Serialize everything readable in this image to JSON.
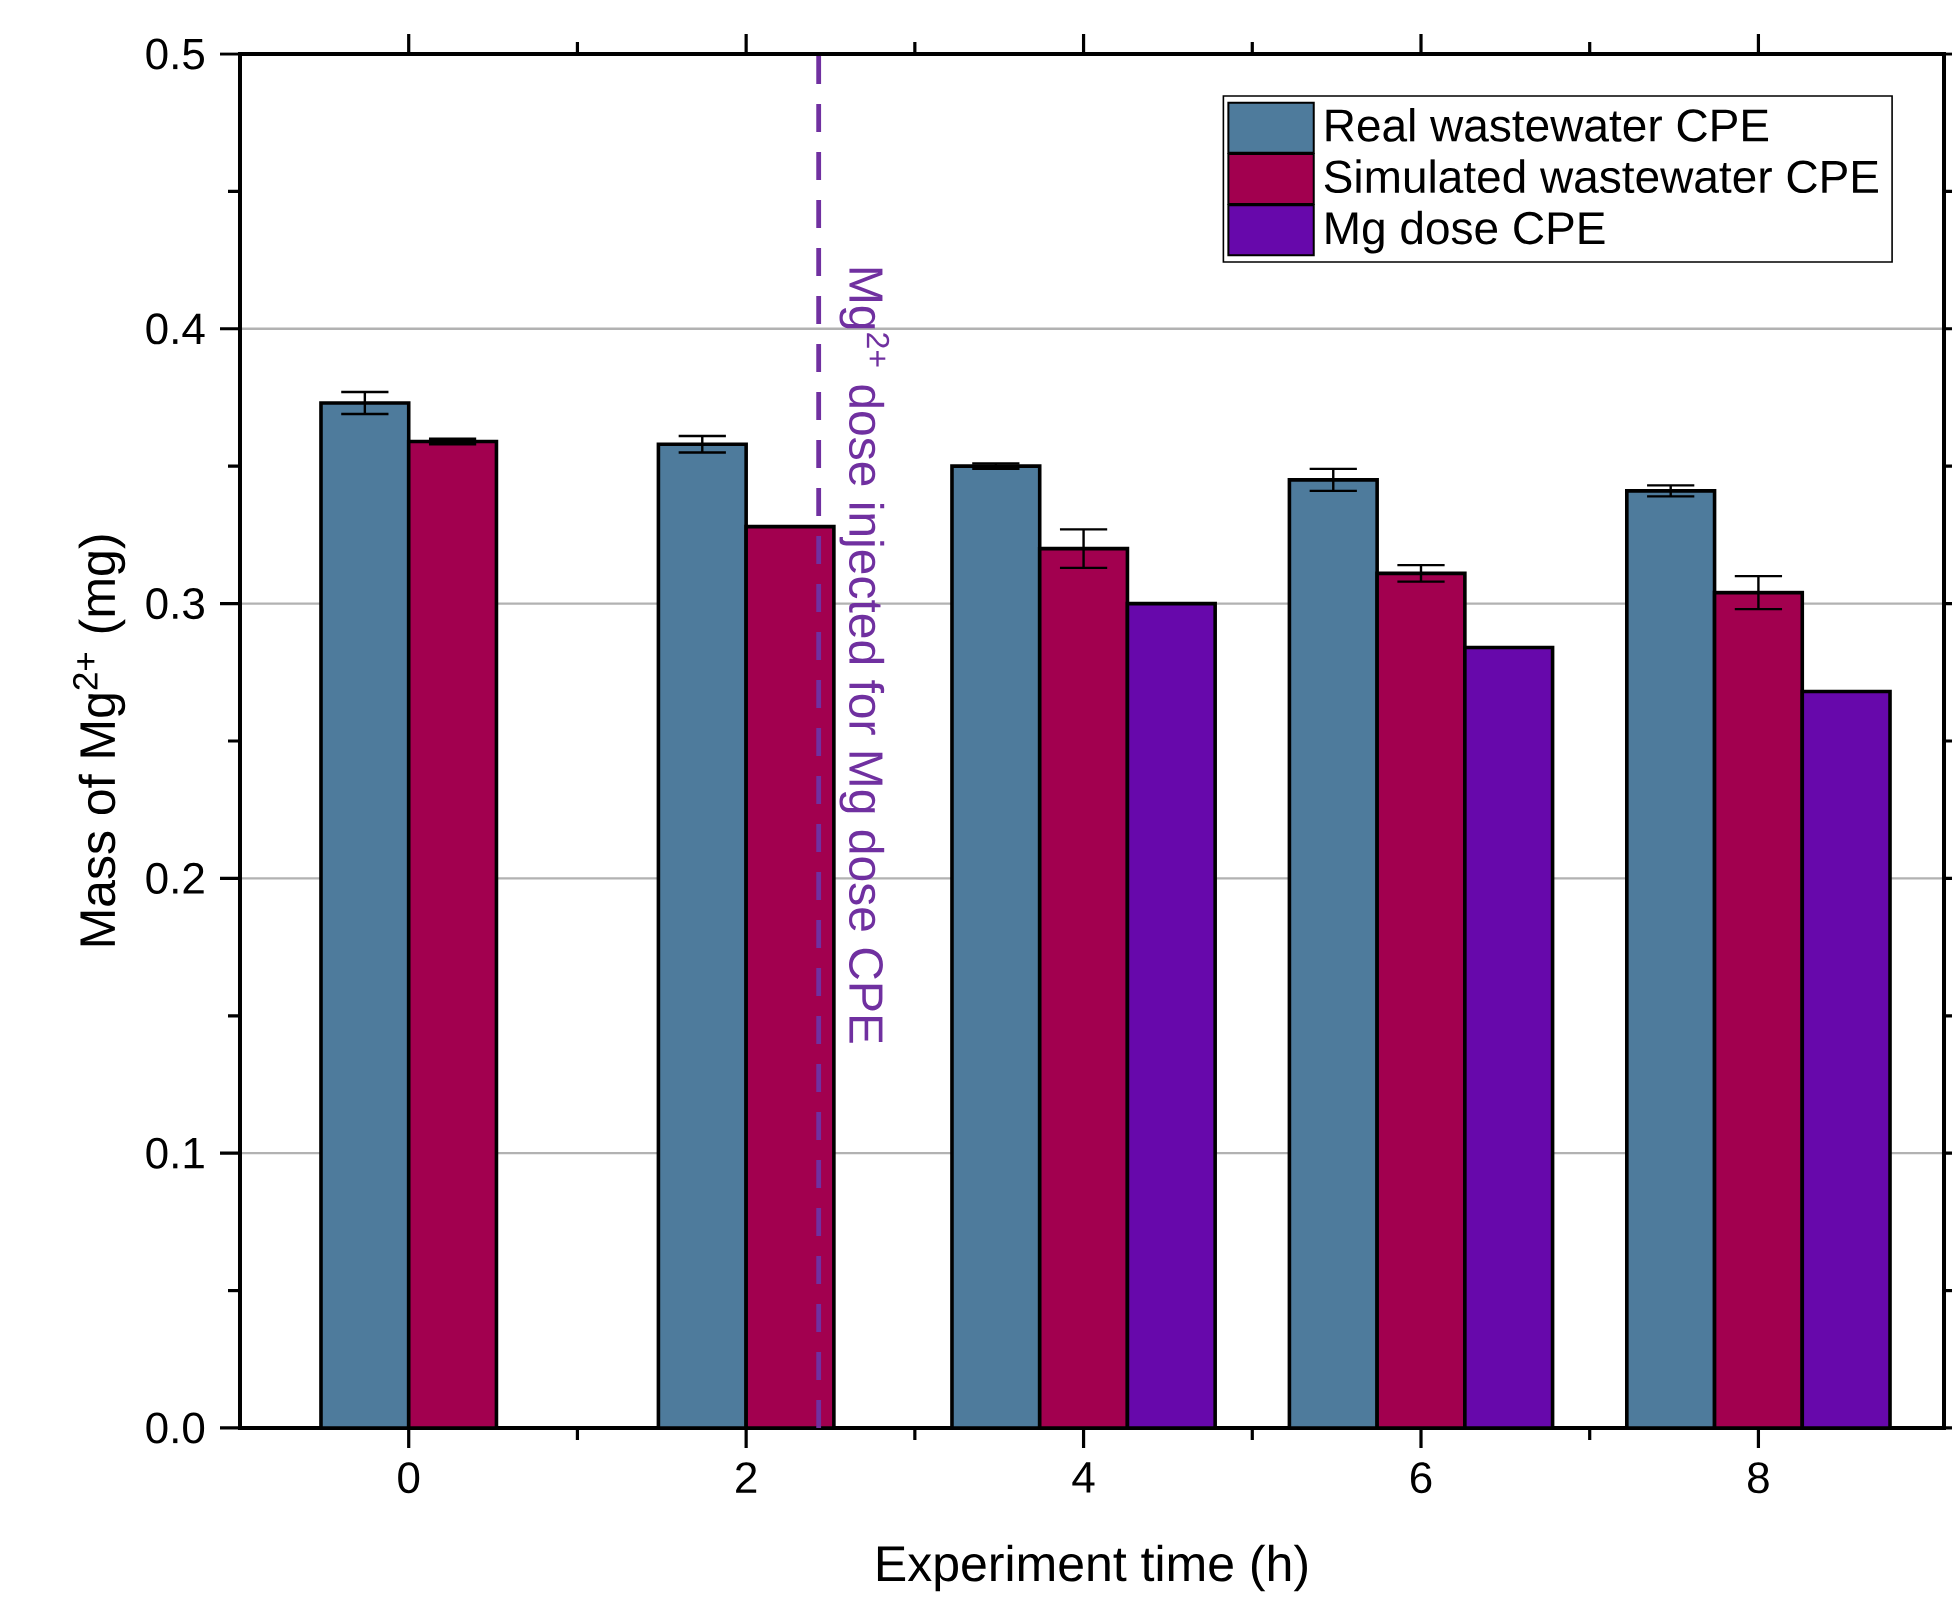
{
  "chart_data": {
    "type": "bar",
    "xlabel": "Experiment time (h)",
    "ylabel": "Mass of Mg$^{2+}$ (mg)",
    "x": [
      0,
      2,
      4,
      6,
      8
    ],
    "xlim": [
      -1,
      9.1
    ],
    "xticks": [
      0,
      2,
      4,
      6,
      8
    ],
    "ylim": [
      0,
      0.5
    ],
    "yticks": [
      {
        "value": 0,
        "label": "0.0"
      },
      {
        "value": 0.1,
        "label": "0.1"
      },
      {
        "value": 0.2,
        "label": "0.2"
      },
      {
        "value": 0.3,
        "label": "0.3"
      },
      {
        "value": 0.4,
        "label": "0.4"
      },
      {
        "value": 0.5,
        "label": "0.5"
      }
    ],
    "series": [
      {
        "name": "Real wastewater CPE",
        "color": "#4e7b9c",
        "values": [
          0.373,
          0.358,
          0.35,
          0.345,
          0.341
        ],
        "errors": [
          0.004,
          0.003,
          0.001,
          0.004,
          0.002
        ]
      },
      {
        "name": "Simulated wastewater CPE",
        "color": "#a2004f",
        "values": [
          0.359,
          0.328,
          0.32,
          0.311,
          0.304
        ],
        "errors": [
          0.001,
          null,
          0.007,
          0.003,
          0.006
        ]
      },
      {
        "name": "Mg dose CPE",
        "color": "#6708ab",
        "values": [
          null,
          null,
          0.3,
          0.284,
          0.268
        ]
      }
    ],
    "ref_lines": [
      {
        "axis": "x",
        "value": 2.43,
        "label": "Mg$^{2+}$ dose injected for Mg dose CPE",
        "color": "#7030a0",
        "line_style": "dashed"
      }
    ],
    "grid": "y",
    "legend": "top right"
  }
}
